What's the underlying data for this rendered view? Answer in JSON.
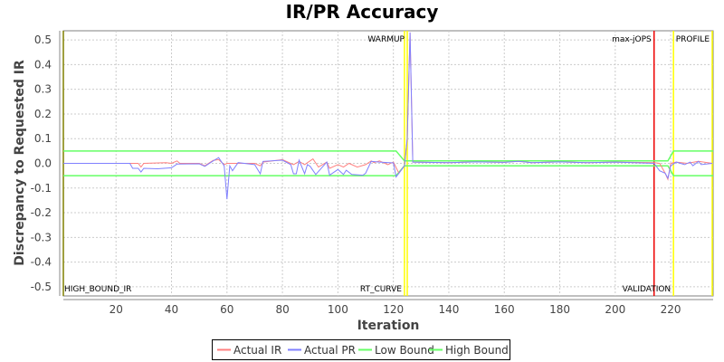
{
  "chart_data": {
    "type": "line",
    "title": "IR/PR Accuracy",
    "xlabel": "Iteration",
    "ylabel": "Discrepancy to Requested IR",
    "xlim": [
      1,
      235.3
    ],
    "ylim": [
      -0.537,
      0.537
    ],
    "grid": true,
    "legend_placement": "bottom",
    "xticks": [
      20,
      40,
      60,
      80,
      100,
      120,
      140,
      160,
      180,
      200,
      220
    ],
    "yticks": [
      "-0.5",
      "-0.4",
      "-0.3",
      "-0.2",
      "-0.1",
      "0.0",
      "0.1",
      "0.2",
      "0.3",
      "0.4",
      "0.5"
    ],
    "series": [
      {
        "name": "Actual IR",
        "color": "#ff8080",
        "points": [
          [
            1,
            0
          ],
          [
            25,
            0
          ],
          [
            28,
            0
          ],
          [
            29,
            -0.015
          ],
          [
            30,
            0
          ],
          [
            38,
            0.003
          ],
          [
            40,
            0
          ],
          [
            42,
            0.01
          ],
          [
            43,
            0
          ],
          [
            50,
            0
          ],
          [
            52,
            -0.01
          ],
          [
            55,
            0.012
          ],
          [
            57,
            0.015
          ],
          [
            59,
            -0.005
          ],
          [
            60,
            0
          ],
          [
            70,
            0
          ],
          [
            72,
            -0.01
          ],
          [
            73,
            0.005
          ],
          [
            80,
            0.015
          ],
          [
            84,
            -0.005
          ],
          [
            86,
            0.008
          ],
          [
            88,
            -0.005
          ],
          [
            91,
            0.018
          ],
          [
            93,
            -0.015
          ],
          [
            96,
            0.005
          ],
          [
            97,
            -0.02
          ],
          [
            100,
            -0.005
          ],
          [
            102,
            -0.015
          ],
          [
            104,
            0
          ],
          [
            107,
            -0.015
          ],
          [
            110,
            -0.005
          ],
          [
            112,
            0.01
          ],
          [
            113,
            0.003
          ],
          [
            115,
            0.01
          ],
          [
            118,
            -0.005
          ],
          [
            120,
            0.005
          ],
          [
            122,
            -0.04
          ],
          [
            124,
            -0.01
          ],
          [
            125,
            0.1
          ],
          [
            126,
            0.53
          ],
          [
            127,
            0.005
          ],
          [
            140,
            0.003
          ],
          [
            150,
            0.006
          ],
          [
            160,
            0.004
          ],
          [
            165,
            0.008
          ],
          [
            170,
            0.003
          ],
          [
            180,
            0.006
          ],
          [
            190,
            0.003
          ],
          [
            200,
            0.005
          ],
          [
            214,
            0.003
          ],
          [
            216,
            0
          ],
          [
            218,
            -0.04
          ],
          [
            219,
            -0.065
          ],
          [
            220,
            0
          ],
          [
            222,
            0.005
          ],
          [
            226,
            0
          ],
          [
            230,
            0.008
          ],
          [
            235,
            0
          ]
        ]
      },
      {
        "name": "Actual PR",
        "color": "#8080ff",
        "points": [
          [
            1,
            0
          ],
          [
            25,
            0
          ],
          [
            26,
            -0.02
          ],
          [
            28,
            -0.02
          ],
          [
            29,
            -0.035
          ],
          [
            30,
            -0.02
          ],
          [
            35,
            -0.022
          ],
          [
            40,
            -0.018
          ],
          [
            42,
            -0.003
          ],
          [
            50,
            -0.002
          ],
          [
            52,
            -0.012
          ],
          [
            55,
            0.01
          ],
          [
            57,
            0.023
          ],
          [
            59,
            -0.01
          ],
          [
            60,
            -0.145
          ],
          [
            61,
            -0.01
          ],
          [
            62,
            -0.03
          ],
          [
            64,
            0.003
          ],
          [
            70,
            -0.005
          ],
          [
            72,
            -0.042
          ],
          [
            73,
            0.008
          ],
          [
            80,
            0.013
          ],
          [
            83,
            -0.005
          ],
          [
            84,
            -0.042
          ],
          [
            85,
            -0.042
          ],
          [
            86,
            0.013
          ],
          [
            88,
            -0.042
          ],
          [
            89,
            -0.005
          ],
          [
            90,
            -0.012
          ],
          [
            92,
            -0.045
          ],
          [
            96,
            0.005
          ],
          [
            97,
            -0.048
          ],
          [
            100,
            -0.025
          ],
          [
            102,
            -0.045
          ],
          [
            103,
            -0.028
          ],
          [
            105,
            -0.045
          ],
          [
            109,
            -0.048
          ],
          [
            110,
            -0.04
          ],
          [
            112,
            0.008
          ],
          [
            115,
            0.005
          ],
          [
            120,
            0.002
          ],
          [
            121,
            -0.055
          ],
          [
            124,
            -0.01
          ],
          [
            125,
            0.1
          ],
          [
            126,
            0.53
          ],
          [
            127,
            0.005
          ],
          [
            140,
            0.003
          ],
          [
            150,
            0.006
          ],
          [
            160,
            0.004
          ],
          [
            165,
            0.008
          ],
          [
            170,
            0.003
          ],
          [
            180,
            0.006
          ],
          [
            190,
            0.003
          ],
          [
            200,
            0.005
          ],
          [
            214,
            0
          ],
          [
            216,
            -0.03
          ],
          [
            218,
            -0.04
          ],
          [
            219,
            -0.06
          ],
          [
            220,
            -0.01
          ],
          [
            222,
            0.005
          ],
          [
            225,
            -0.005
          ],
          [
            227,
            0.005
          ],
          [
            228,
            -0.01
          ],
          [
            230,
            0.008
          ],
          [
            231,
            -0.005
          ],
          [
            235,
            0
          ]
        ]
      },
      {
        "name": "Low Bound",
        "color": "#66ff66",
        "points": [
          [
            1,
            -0.05
          ],
          [
            121,
            -0.05
          ],
          [
            124,
            -0.01
          ],
          [
            219,
            -0.01
          ],
          [
            221,
            -0.05
          ],
          [
            235.3,
            -0.05
          ]
        ]
      },
      {
        "name": "High Bound",
        "color": "#66ff66",
        "points": [
          [
            1,
            0.05
          ],
          [
            121,
            0.05
          ],
          [
            124,
            0.01
          ],
          [
            219,
            0.01
          ],
          [
            221,
            0.05
          ],
          [
            235.3,
            0.05
          ]
        ]
      }
    ],
    "markers": [
      {
        "x": 1,
        "label": "HIGH_BOUND_IR",
        "color": "#808000",
        "pos": "bottom"
      },
      {
        "x": 124,
        "label": "RT_CURVE",
        "color": "#ffff00",
        "pos": "bottom"
      },
      {
        "x": 125,
        "label": "WARMUP",
        "color": "#ffff00",
        "pos": "top"
      },
      {
        "x": 214,
        "label": "max-jOPS",
        "color": "#ee0000",
        "pos": "top"
      },
      {
        "x": 221,
        "label": "VALIDATION",
        "color": "#ffff00",
        "pos": "bottom"
      },
      {
        "x": 235.3,
        "label": "PROFILE",
        "color": "#ffff00",
        "pos": "top"
      }
    ]
  }
}
